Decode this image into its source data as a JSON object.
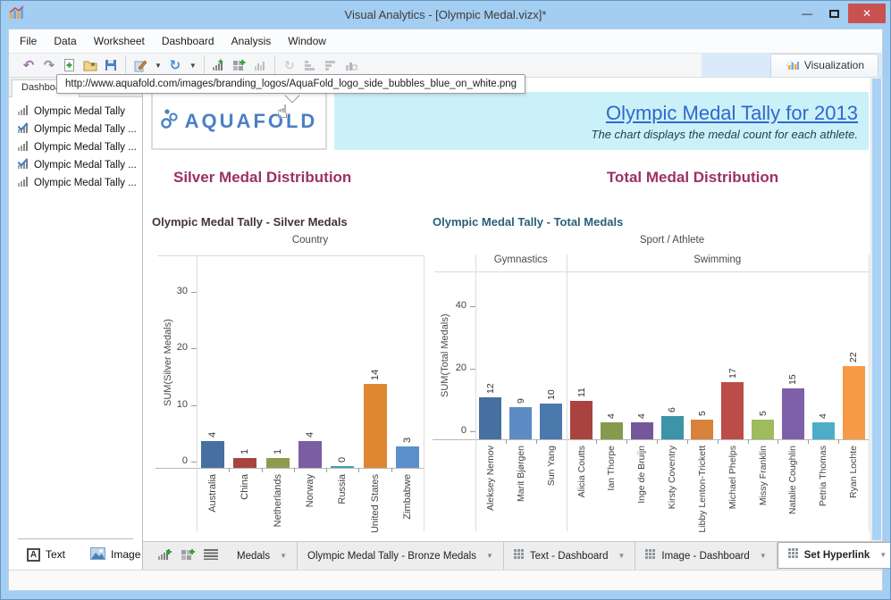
{
  "window": {
    "title": "Visual Analytics - [Olympic Medal.vizx]*",
    "controls": [
      "minimize",
      "maximize",
      "close"
    ]
  },
  "menu": {
    "items": [
      "File",
      "Data",
      "Worksheet",
      "Dashboard",
      "Analysis",
      "Window"
    ]
  },
  "toolbar": {
    "visualization_label": "Visualization",
    "icons": [
      "undo",
      "redo",
      "new-file",
      "open-file",
      "save",
      "format",
      "refresh",
      "new-worksheet",
      "new-dashboard",
      "chart",
      "rotate",
      "sort-ascending",
      "sort-descending",
      "chart-box"
    ]
  },
  "tooltip": {
    "text": "http://www.aquafold.com/images/branding_logos/AquaFold_logo_side_bubbles_blue_on_white.png"
  },
  "sidebar": {
    "header": "Dashboard",
    "items": [
      {
        "label": "Olympic Medal Tally",
        "checked": false
      },
      {
        "label": "Olympic Medal Tally ...",
        "checked": true
      },
      {
        "label": "Olympic Medal Tally ...",
        "checked": false
      },
      {
        "label": "Olympic Medal Tally ...",
        "checked": true
      },
      {
        "label": "Olympic Medal Tally ...",
        "checked": false
      }
    ],
    "footer": {
      "text_label": "Text",
      "image_label": "Image"
    }
  },
  "dashboard": {
    "logo_text": "AQUAFOLD",
    "title": "Olympic Medal Tally for 2013",
    "subtitle": "The chart displays the medal count for each athlete.",
    "accent_colors": {
      "title_blue": "#2e68ce",
      "panel_cyan": "#cbf1f8",
      "heading_purple": "#9c3166"
    },
    "sections": [
      {
        "heading": "Silver Medal Distribution"
      },
      {
        "heading": "Total Medal Distribution"
      }
    ]
  },
  "chart_data": [
    {
      "type": "bar",
      "title": "Olympic Medal Tally - Silver Medals",
      "top_axis_label": "Country",
      "ylabel": "SUM(Silver Medals)",
      "ylim": [
        0,
        35
      ],
      "yticks": [
        0,
        10,
        20,
        30
      ],
      "grid": false,
      "value_labels": true,
      "categories": [
        "Australia",
        "China",
        "Netherlands",
        "Norway",
        "Russia",
        "United States",
        "Zimbabwe"
      ],
      "values": [
        4,
        1,
        1,
        4,
        0,
        14,
        3
      ],
      "bar_colors": [
        "#45709f",
        "#a8433f",
        "#8d9b4e",
        "#7a5da3",
        "#3fa3b8",
        "#df8633",
        "#5b8fcb"
      ]
    },
    {
      "type": "bar",
      "title": "Olympic Medal Tally - Total Medals",
      "top_axis_label": "Sport / Athlete",
      "ylabel": "SUM(Total Medals)",
      "ylim": [
        0,
        50
      ],
      "yticks": [
        0,
        20,
        40
      ],
      "grid": false,
      "value_labels": true,
      "groups": [
        {
          "name": "Gymnastics",
          "categories": [
            "Aleksey Nemov",
            "Marit Bjørgen",
            "Sun Yang"
          ],
          "values": [
            12,
            9,
            10
          ],
          "bar_colors": [
            "#45709f",
            "#5d8cc4",
            "#4a79ad"
          ]
        },
        {
          "name": "Swimming",
          "categories": [
            "Alicia Coutts",
            "Ian Thorpe",
            "Inge de Bruijn",
            "Kirsty Coventry",
            "Libby Lenton-Trickett",
            "Michael Phelps",
            "Missy Franklin",
            "Natalie Coughlin",
            "Petria Thomas",
            "Ryan Lochte"
          ],
          "values": [
            11,
            4,
            4,
            6,
            5,
            17,
            5,
            15,
            4,
            22
          ],
          "bar_colors": [
            "#a8433f",
            "#87994c",
            "#75589b",
            "#3d93a8",
            "#d7813a",
            "#bb4c47",
            "#a0ba5e",
            "#7d60a8",
            "#4dadc9",
            "#f79a47"
          ]
        }
      ]
    }
  ],
  "bottom_bar": {
    "icons": [
      "new-worksheet",
      "new-dashboard",
      "sheet-list"
    ],
    "tabs": [
      {
        "label": "Medals",
        "icon": false,
        "active": false
      },
      {
        "label": "Olympic Medal Tally - Bronze Medals",
        "icon": false,
        "active": false
      },
      {
        "label": "Text - Dashboard",
        "icon": true,
        "active": false
      },
      {
        "label": "Image - Dashboard",
        "icon": true,
        "active": false
      },
      {
        "label": "Set Hyperlink",
        "icon": true,
        "active": true
      }
    ]
  }
}
